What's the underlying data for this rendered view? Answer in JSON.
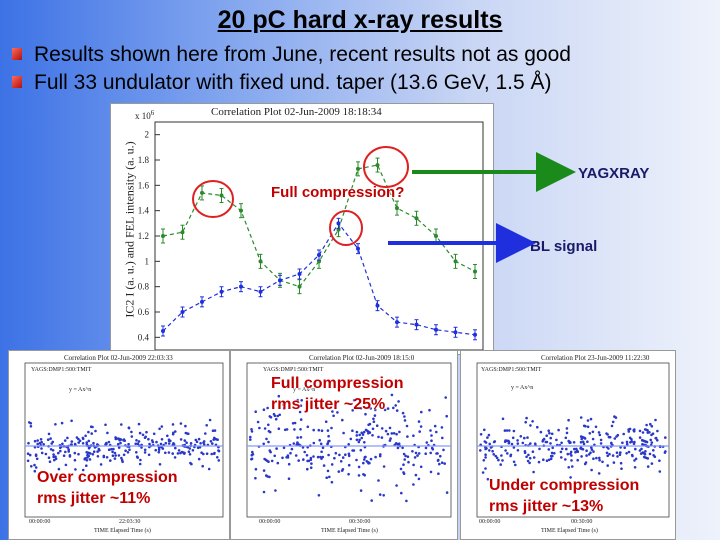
{
  "slide": {
    "title": "20 pC hard x-ray results",
    "bullets": [
      "Results shown here from June, recent results not as good",
      "Full 33 undulator with fixed und. taper (13.6 GeV, 1.5 Å)"
    ],
    "accent_color": "#c00000"
  },
  "main_plot": {
    "title": "Correlation Plot 02-Jun-2009 18:18:34",
    "exponent": "x 10",
    "exponent_power": "6",
    "ylabel": "IC2 I (a. u.) and FEL intensity (a. u.)",
    "ytick_labels": [
      "2",
      "1.8",
      "1.6",
      "1.4",
      "1.2",
      "1",
      "0.8",
      "0.6",
      "0.4"
    ],
    "annotation_full": "Full compression?",
    "label_yagxray": "YAGXRAY",
    "label_bl": "BL signal",
    "arrow_green_color": "#1a8a1a",
    "arrow_blue_color": "#1f2fdd"
  },
  "chart_data": {
    "type": "scatter",
    "title": "Correlation Plot 02-Jun-2009 18:18:34",
    "ylabel": "IC2 I (a. u.) and FEL intensity (a. u.)",
    "y_multiplier": "x 10^6",
    "ylim": [
      0.3,
      2.1
    ],
    "x_index": [
      1,
      2,
      3,
      4,
      5,
      6,
      7,
      8,
      9,
      10,
      11,
      12,
      13,
      14,
      15,
      16,
      17
    ],
    "series": [
      {
        "name": "YAGXRAY",
        "color": "#2a8a2a",
        "values": [
          1.2,
          1.23,
          1.54,
          1.52,
          1.4,
          1.0,
          0.85,
          0.8,
          1.0,
          1.25,
          1.73,
          1.76,
          1.42,
          1.34,
          1.2,
          1.0,
          0.92
        ]
      },
      {
        "name": "BL signal",
        "color": "#1f2fdd",
        "values": [
          0.45,
          0.6,
          0.68,
          0.76,
          0.8,
          0.76,
          0.85,
          0.9,
          1.05,
          1.3,
          1.1,
          0.65,
          0.52,
          0.5,
          0.46,
          0.44,
          0.42
        ]
      }
    ]
  },
  "sub_plots": [
    {
      "title": "Correlation Plot 02-Jun-2009 22:03:33",
      "legend1": "YAGS:DMP1:500:TMIT",
      "legend2": "y = Ax^n",
      "xtick_left": "00:00:00",
      "xtick_mid": "22:03:30",
      "xlabel": "TIME Elapsed Time (s)",
      "annotation": [
        "Over compression",
        "rms jitter ~11%"
      ]
    },
    {
      "title": "Correlation Plot 02-Jun-2009 18:15:0",
      "legend1": "YAGS:DMP1:500:TMIT",
      "legend2": "y = Ax^n",
      "xtick_left": "00:00:00",
      "xtick_mid": "00:30:00",
      "xlabel": "TIME Elapsed Time (s)",
      "annotation": [
        "Full compression",
        "rms jitter ~25%"
      ]
    },
    {
      "title": "Correlation Plot 23-Jun-2009 11:22:30",
      "legend1": "YAGS:DMP1:500:TMIT",
      "legend2": "y = Ax^n",
      "xtick_left": "00:00:00",
      "xtick_mid": "00:30:00",
      "xlabel": "TIME Elapsed Time (s)",
      "annotation": [
        "Under compression",
        "rms jitter ~13%"
      ]
    }
  ]
}
